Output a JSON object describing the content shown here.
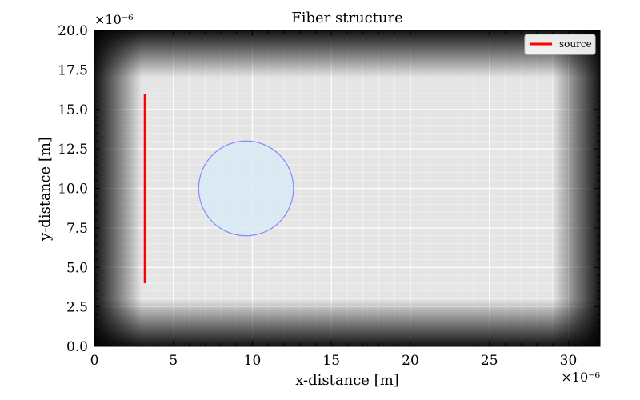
{
  "chart_data": {
    "type": "scatter",
    "title": "Fiber structure",
    "xlabel": "x-distance [m]",
    "ylabel": "y-distance [m]",
    "xlim": [
      0,
      32
    ],
    "ylim": [
      0,
      20
    ],
    "x_ticks": [
      0,
      5,
      10,
      15,
      20,
      25,
      30
    ],
    "x_tick_labels": [
      "0",
      "5",
      "10",
      "15",
      "20",
      "25",
      "30"
    ],
    "y_ticks": [
      0,
      2.5,
      5,
      7.5,
      10,
      12.5,
      15,
      17.5,
      20
    ],
    "y_tick_labels": [
      "0.0",
      "2.5",
      "5.0",
      "7.5",
      "10.0",
      "12.5",
      "15.0",
      "17.5",
      "20.0"
    ],
    "x_offset_label": "×10⁻⁶",
    "y_offset_label": "×10⁻⁶",
    "grid": true,
    "legend": {
      "position": "top-right",
      "entries": [
        {
          "label": "source",
          "color": "#ff0000"
        }
      ]
    },
    "source": {
      "x": 3.2,
      "y_start": 4,
      "y_end": 16,
      "color": "#ff0000"
    },
    "fiber": {
      "center_x": 9.6,
      "center_y": 10,
      "radius": 3,
      "edge_color": "#8888ff",
      "fill_color": "#d8eaf5"
    },
    "pml_thickness": 3,
    "background_color": "#e5e5e5"
  }
}
